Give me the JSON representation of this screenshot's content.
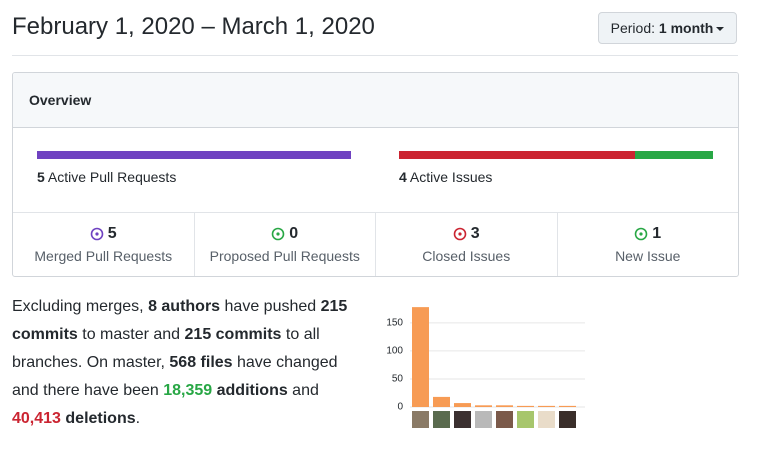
{
  "header": {
    "title": "February 1, 2020 – March 1, 2020",
    "period_label": "Period:",
    "period_value": "1 month"
  },
  "overview": {
    "title": "Overview",
    "pull_requests": {
      "count": 5,
      "label": "Active Pull Requests"
    },
    "issues": {
      "count": 4,
      "label": "Active Issues"
    },
    "stats": [
      {
        "value": 5,
        "label": "Merged Pull Requests",
        "color": "#6f42c1"
      },
      {
        "value": 0,
        "label": "Proposed Pull Requests",
        "color": "#28a745"
      },
      {
        "value": 3,
        "label": "Closed Issues",
        "color": "#cb2431"
      },
      {
        "value": 1,
        "label": "New Issue",
        "color": "#28a745"
      }
    ]
  },
  "summary": [
    {
      "text": "Excluding merges, "
    },
    {
      "text": "8 authors",
      "bold": true
    },
    {
      "text": " have pushed "
    },
    {
      "text": "215 commits",
      "bold": true
    },
    {
      "text": " to master and "
    },
    {
      "text": "215 commits",
      "bold": true
    },
    {
      "text": " to all branches. On master, "
    },
    {
      "text": "568 files",
      "bold": true
    },
    {
      "text": " have changed and there have been "
    },
    {
      "text": "18,359",
      "bold": true,
      "color": "#28a745"
    },
    {
      "text": " "
    },
    {
      "text": "additions",
      "bold": true
    },
    {
      "text": " and "
    },
    {
      "text": "40,413",
      "bold": true,
      "color": "#cb2431"
    },
    {
      "text": " "
    },
    {
      "text": "deletions",
      "bold": true
    },
    {
      "text": "."
    }
  ],
  "chart_data": {
    "type": "bar",
    "categories": [
      null,
      null,
      null,
      null,
      null,
      null,
      null,
      null
    ],
    "values": [
      178,
      18,
      7,
      3,
      3,
      2,
      2,
      2
    ],
    "color": "#f79b54",
    "ylim": [
      0,
      180
    ],
    "yticks": [
      0,
      50,
      100,
      150
    ],
    "grid": true
  }
}
